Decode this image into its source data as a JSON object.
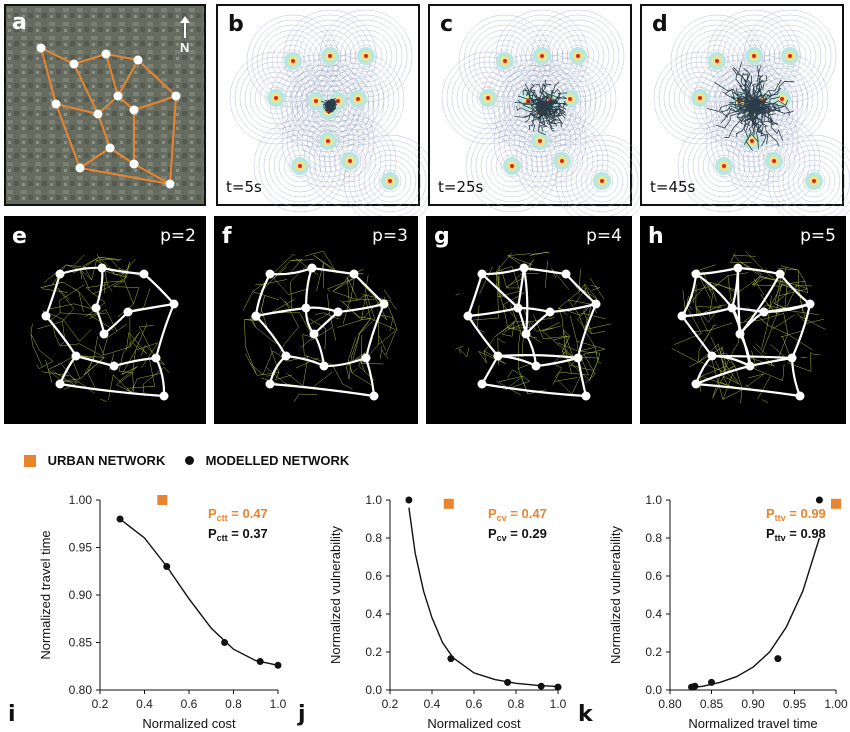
{
  "panels_top": [
    {
      "letter": "a",
      "north": "N"
    },
    {
      "letter": "b",
      "time": "t=5s"
    },
    {
      "letter": "c",
      "time": "t=25s"
    },
    {
      "letter": "d",
      "time": "t=45s"
    }
  ],
  "panels_mid": [
    {
      "letter": "e",
      "p": "p=2"
    },
    {
      "letter": "f",
      "p": "p=3"
    },
    {
      "letter": "g",
      "p": "p=4"
    },
    {
      "letter": "h",
      "p": "p=5"
    }
  ],
  "legend": {
    "urban": "URBAN NETWORK",
    "modelled": "MODELLED NETWORK",
    "urban_color": "#e8842e",
    "modelled_color": "#111111"
  },
  "chart_data": [
    {
      "letter": "i",
      "type": "scatter",
      "xlabel": "Normalized cost",
      "ylabel": "Normalized travel time",
      "xlim": [
        0.2,
        1.0
      ],
      "ylim": [
        0.8,
        1.0
      ],
      "xticks": [
        "0.2",
        "0.4",
        "0.6",
        "0.8",
        "1.0"
      ],
      "yticks": [
        "0.80",
        "0.85",
        "0.90",
        "0.95",
        "1.00"
      ],
      "modelled": [
        [
          0.29,
          0.98
        ],
        [
          0.5,
          0.93
        ],
        [
          0.76,
          0.85
        ],
        [
          0.92,
          0.83
        ],
        [
          1.0,
          0.826
        ]
      ],
      "urban": [
        [
          0.48,
          1.0
        ]
      ],
      "fit": [
        [
          0.29,
          0.98
        ],
        [
          0.4,
          0.96
        ],
        [
          0.5,
          0.93
        ],
        [
          0.6,
          0.896
        ],
        [
          0.7,
          0.865
        ],
        [
          0.8,
          0.843
        ],
        [
          0.9,
          0.831
        ],
        [
          1.0,
          0.826
        ]
      ],
      "annot_urban": {
        "sym": "P",
        "sub": "ctt",
        "val": " = 0.47"
      },
      "annot_model": {
        "sym": "P",
        "sub": "ctt",
        "val": " = 0.37"
      }
    },
    {
      "letter": "j",
      "type": "scatter",
      "xlabel": "Normalized cost",
      "ylabel": "Normalized vulnerability",
      "xlim": [
        0.2,
        1.0
      ],
      "ylim": [
        0.0,
        1.0
      ],
      "xticks": [
        "0.2",
        "0.4",
        "0.6",
        "0.8",
        "1.0"
      ],
      "yticks": [
        "0.0",
        "0.2",
        "0.4",
        "0.6",
        "0.8",
        "1.0"
      ],
      "modelled": [
        [
          0.29,
          1.0
        ],
        [
          0.49,
          0.165
        ],
        [
          0.76,
          0.04
        ],
        [
          0.92,
          0.02
        ],
        [
          1.0,
          0.015
        ]
      ],
      "urban": [
        [
          0.48,
          0.98
        ]
      ],
      "fit": [
        [
          0.29,
          0.96
        ],
        [
          0.32,
          0.72
        ],
        [
          0.36,
          0.52
        ],
        [
          0.4,
          0.38
        ],
        [
          0.45,
          0.25
        ],
        [
          0.5,
          0.17
        ],
        [
          0.6,
          0.09
        ],
        [
          0.7,
          0.055
        ],
        [
          0.8,
          0.035
        ],
        [
          0.9,
          0.025
        ],
        [
          1.0,
          0.018
        ]
      ],
      "annot_urban": {
        "sym": "P",
        "sub": "cv",
        "val": " = 0.47"
      },
      "annot_model": {
        "sym": "P",
        "sub": "cv",
        "val": " = 0.29"
      }
    },
    {
      "letter": "k",
      "type": "scatter",
      "xlabel": "Normalized travel time",
      "ylabel": "Normalized vulnerability",
      "xlim": [
        0.8,
        1.0
      ],
      "ylim": [
        0.0,
        1.0
      ],
      "xticks": [
        "0.80",
        "0.85",
        "0.90",
        "0.95",
        "1.00"
      ],
      "yticks": [
        "0.0",
        "0.2",
        "0.4",
        "0.6",
        "0.8",
        "1.0"
      ],
      "modelled": [
        [
          0.826,
          0.015
        ],
        [
          0.83,
          0.02
        ],
        [
          0.85,
          0.04
        ],
        [
          0.93,
          0.165
        ],
        [
          0.98,
          1.0
        ]
      ],
      "urban": [
        [
          1.0,
          0.98
        ]
      ],
      "fit": [
        [
          0.826,
          0.012
        ],
        [
          0.84,
          0.02
        ],
        [
          0.86,
          0.04
        ],
        [
          0.88,
          0.07
        ],
        [
          0.9,
          0.12
        ],
        [
          0.92,
          0.2
        ],
        [
          0.94,
          0.33
        ],
        [
          0.96,
          0.52
        ],
        [
          0.98,
          0.8
        ]
      ],
      "annot_urban": {
        "sym": "P",
        "sub": "ttv",
        "val": " = 0.99"
      },
      "annot_model": {
        "sym": "P",
        "sub": "ttv",
        "val": " = 0.98"
      }
    }
  ]
}
